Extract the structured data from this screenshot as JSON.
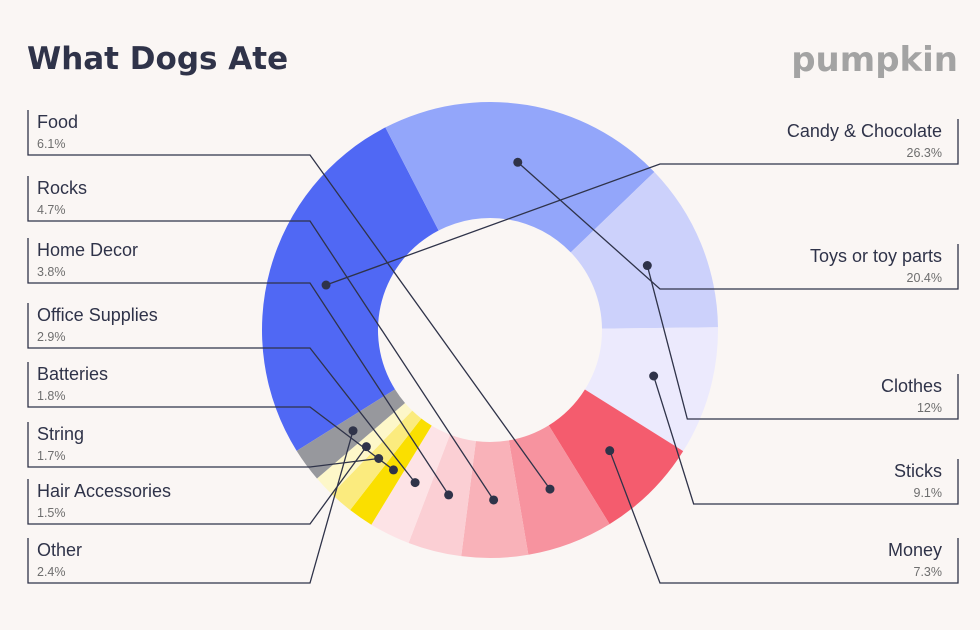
{
  "header": {
    "title": "What Dogs Ate",
    "logo": "pumpkin"
  },
  "chart_data": {
    "type": "pie",
    "title": "What Dogs Ate",
    "unit": "%",
    "slices": [
      {
        "label": "Candy & Chocolate",
        "value": 26.3,
        "display": "26.3%",
        "color": "#5068f4"
      },
      {
        "label": "Toys or toy parts",
        "value": 20.4,
        "display": "20.4%",
        "color": "#93a6fa"
      },
      {
        "label": "Clothes",
        "value": 12,
        "display": "12%",
        "color": "#ccd1fb"
      },
      {
        "label": "Sticks",
        "value": 9.1,
        "display": "9.1%",
        "color": "#eceafd"
      },
      {
        "label": "Money",
        "value": 7.3,
        "display": "7.3%",
        "color": "#f45c6e"
      },
      {
        "label": "Food",
        "value": 6.1,
        "display": "6.1%",
        "color": "#f7939f"
      },
      {
        "label": "Rocks",
        "value": 4.7,
        "display": "4.7%",
        "color": "#f9b2b9"
      },
      {
        "label": "Home Decor",
        "value": 3.8,
        "display": "3.8%",
        "color": "#fbcfd4"
      },
      {
        "label": "Office Supplies",
        "value": 2.9,
        "display": "2.9%",
        "color": "#fde3e6"
      },
      {
        "label": "Batteries",
        "value": 1.8,
        "display": "1.8%",
        "color": "#fadf00"
      },
      {
        "label": "String",
        "value": 1.7,
        "display": "1.7%",
        "color": "#fbeb7e"
      },
      {
        "label": "Hair Accessories",
        "value": 1.5,
        "display": "1.5%",
        "color": "#fdf7c9"
      },
      {
        "label": "Other",
        "value": 2.4,
        "display": "2.4%",
        "color": "#97989d"
      }
    ]
  }
}
